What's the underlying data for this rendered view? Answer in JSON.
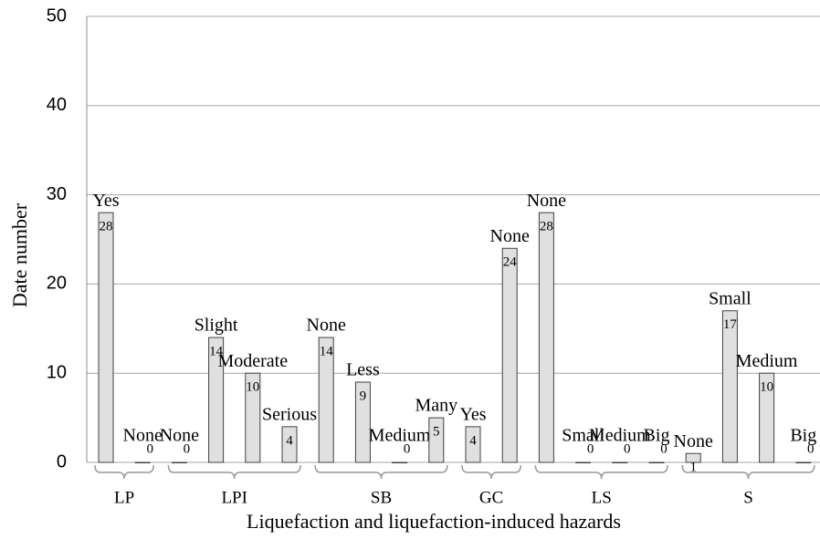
{
  "chart_data": {
    "type": "bar",
    "y_label": "Date number",
    "x_label": "Liquefaction and liquefaction-induced hazards",
    "color": "#e0e0e0",
    "ylim": [
      0,
      50
    ],
    "yticks": [
      0,
      10,
      20,
      30,
      40,
      50
    ],
    "grid": true,
    "groups": [
      {
        "name": "LP",
        "categories": [
          "Yes",
          "None"
        ],
        "values": [
          28,
          0
        ]
      },
      {
        "name": "LPI",
        "categories": [
          "None",
          "Slight",
          "Moderate",
          "Serious"
        ],
        "values": [
          0,
          14,
          10,
          4
        ]
      },
      {
        "name": "SB",
        "categories": [
          "None",
          "Less",
          "Medium",
          "Many"
        ],
        "values": [
          14,
          9,
          0,
          5
        ]
      },
      {
        "name": "GC",
        "categories": [
          "Yes",
          "None"
        ],
        "values": [
          4,
          24
        ]
      },
      {
        "name": "LS",
        "categories": [
          "None",
          "Small",
          "Medium",
          "Big"
        ],
        "values": [
          28,
          0,
          0,
          0
        ]
      },
      {
        "name": "S",
        "categories": [
          "None",
          "Small",
          "Medium",
          "Big"
        ],
        "values": [
          1,
          17,
          10,
          0
        ]
      }
    ]
  }
}
